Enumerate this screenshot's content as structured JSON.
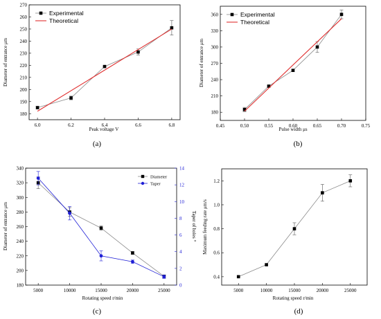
{
  "chart_data": [
    {
      "type": "line",
      "caption": "(a)",
      "xlabel": "Peak voltage V",
      "ylabel": "Diameter of entrance μm",
      "xlim": [
        5.95,
        6.85
      ],
      "ylim": [
        175,
        270
      ],
      "xticks": [
        "6.0",
        "6.2",
        "6.4",
        "6.6",
        "6.8"
      ],
      "xtick_values": [
        6.0,
        6.2,
        6.4,
        6.6,
        6.8
      ],
      "yticks": [
        "180",
        "190",
        "200",
        "210",
        "220",
        "230",
        "240",
        "250",
        "260",
        "270"
      ],
      "ytick_values": [
        180,
        190,
        200,
        210,
        220,
        230,
        240,
        250,
        260,
        270
      ],
      "legend_position": "top-left",
      "series": [
        {
          "name": "Experimental",
          "color": "#000000",
          "marker": "square",
          "x": [
            6.0,
            6.2,
            6.4,
            6.6,
            6.8
          ],
          "y": [
            185,
            193,
            219,
            231,
            251
          ],
          "err": [
            1,
            1.5,
            0.5,
            2.5,
            6
          ]
        },
        {
          "name": "Theoretical",
          "color": "#e03030",
          "marker": "none",
          "x": [
            6.0,
            6.8
          ],
          "y": [
            182,
            250
          ]
        }
      ]
    },
    {
      "type": "line",
      "caption": "(b)",
      "xlabel": "Pulse width μs",
      "ylabel": "Diameter of entrance μm",
      "xlim": [
        0.45,
        0.75
      ],
      "ylim": [
        165,
        375
      ],
      "xticks": [
        "0.45",
        "0.50",
        "0.55",
        "0.60",
        "0.65",
        "0.70",
        "0.75"
      ],
      "xtick_values": [
        0.45,
        0.5,
        0.55,
        0.6,
        0.65,
        0.7,
        0.75
      ],
      "yticks": [
        "180",
        "210",
        "240",
        "270",
        "300",
        "330",
        "360"
      ],
      "ytick_values": [
        180,
        210,
        240,
        270,
        300,
        330,
        360
      ],
      "legend_position": "top-left",
      "series": [
        {
          "name": "Experimental",
          "color": "#000000",
          "marker": "square",
          "x": [
            0.5,
            0.55,
            0.6,
            0.65,
            0.7
          ],
          "y": [
            185,
            228,
            257,
            300,
            360
          ],
          "err": [
            4,
            1.5,
            2,
            10,
            8
          ]
        },
        {
          "name": "Theoretical",
          "color": "#e03030",
          "marker": "none",
          "x": [
            0.5,
            0.7
          ],
          "y": [
            182,
            352
          ]
        }
      ]
    },
    {
      "type": "line",
      "caption": "(c)",
      "xlabel": "Rotating speed r/min",
      "ylabel": "Diameter of entrance μm",
      "y2label": "Taper of holes °",
      "xlim": [
        3000,
        27000
      ],
      "ylim": [
        180,
        340
      ],
      "y2lim": [
        0,
        14
      ],
      "xticks": [
        "5000",
        "10000",
        "15000",
        "20000",
        "25000"
      ],
      "xtick_values": [
        5000,
        10000,
        15000,
        20000,
        25000
      ],
      "yticks": [
        "180",
        "200",
        "220",
        "240",
        "260",
        "280",
        "300",
        "320",
        "340"
      ],
      "ytick_values": [
        180,
        200,
        220,
        240,
        260,
        280,
        300,
        320,
        340
      ],
      "y2ticks": [
        "0",
        "2",
        "4",
        "6",
        "8",
        "10",
        "12",
        "14"
      ],
      "y2tick_values": [
        0,
        2,
        4,
        6,
        8,
        10,
        12,
        14
      ],
      "legend_position": "top-right",
      "series": [
        {
          "name": "Diameter",
          "color": "#000000",
          "marker": "square",
          "axis": "left",
          "x": [
            5000,
            10000,
            15000,
            20000,
            25000
          ],
          "y": [
            320,
            280,
            258,
            224,
            192
          ],
          "err": [
            8,
            6,
            3,
            2,
            2
          ]
        },
        {
          "name": "Taper",
          "color": "#1f1fd6",
          "marker": "circle",
          "axis": "right",
          "x": [
            5000,
            10000,
            15000,
            20000,
            25000
          ],
          "y": [
            12.8,
            8.6,
            3.5,
            2.8,
            1.0
          ],
          "err": [
            0.8,
            0.8,
            0.6,
            0.2,
            0.2
          ]
        }
      ]
    },
    {
      "type": "line",
      "caption": "(d)",
      "xlabel": "Rotating speed r/min",
      "ylabel": "Maximum feeding rate μm/s",
      "xlim": [
        2000,
        28000
      ],
      "ylim": [
        0.33,
        1.3
      ],
      "xticks": [
        "5000",
        "10000",
        "15000",
        "20000",
        "25000"
      ],
      "xtick_values": [
        5000,
        10000,
        15000,
        20000,
        25000
      ],
      "yticks": [
        "0.4",
        "0.6",
        "0.8",
        "1.0",
        "1.2"
      ],
      "ytick_values": [
        0.4,
        0.6,
        0.8,
        1.0,
        1.2
      ],
      "series": [
        {
          "name": "",
          "color": "#000000",
          "marker": "square",
          "x": [
            5000,
            10000,
            15000,
            20000,
            25000
          ],
          "y": [
            0.4,
            0.5,
            0.8,
            1.1,
            1.2
          ],
          "err": [
            0,
            0,
            0.05,
            0.07,
            0.05
          ]
        }
      ]
    }
  ]
}
